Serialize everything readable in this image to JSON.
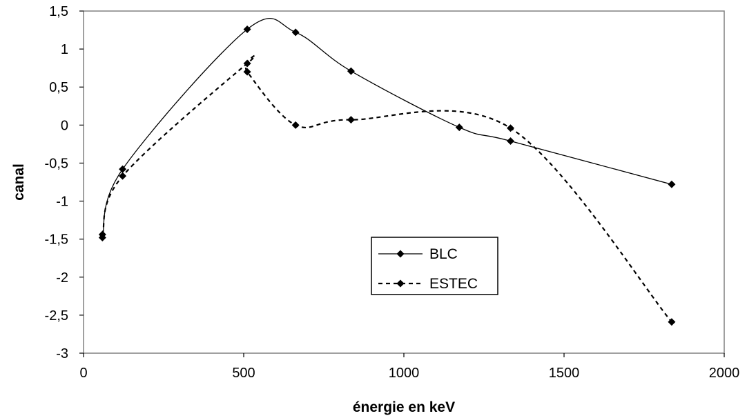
{
  "chart_data": {
    "type": "scatter",
    "title": "",
    "xlabel": "énergie en keV",
    "ylabel": "canal",
    "xlim": [
      0,
      2000
    ],
    "ylim": [
      -3,
      1.5
    ],
    "x_ticks": [
      0,
      500,
      1000,
      1500,
      2000
    ],
    "x_tick_labels": [
      "0",
      "500",
      "1000",
      "1500",
      "2000"
    ],
    "y_ticks": [
      1.5,
      1,
      0.5,
      0,
      -0.5,
      -1,
      -1.5,
      -2,
      -2.5,
      -3
    ],
    "y_tick_labels": [
      "1,5",
      "1",
      "0,5",
      "0",
      "-0,5",
      "-1",
      "-1,5",
      "-2",
      "-2,5",
      "-3"
    ],
    "grid": false,
    "legend_position": "center-right",
    "series": [
      {
        "name": "BLC",
        "line_style": "solid",
        "color": "#000000",
        "marker": "diamond",
        "points": [
          {
            "x": 59,
            "y": -1.48
          },
          {
            "x": 122,
            "y": -0.58
          },
          {
            "x": 511,
            "y": 1.26
          },
          {
            "x": 662,
            "y": 1.22
          },
          {
            "x": 835,
            "y": 0.71
          },
          {
            "x": 1173,
            "y": -0.03
          },
          {
            "x": 1333,
            "y": -0.21
          },
          {
            "x": 1836,
            "y": -0.78
          }
        ]
      },
      {
        "name": "ESTEC",
        "line_style": "dashed",
        "color": "#000000",
        "marker": "diamond",
        "points": [
          {
            "x": 59,
            "y": -1.44
          },
          {
            "x": 122,
            "y": -0.67
          },
          {
            "x": 511,
            "y": 0.81
          },
          {
            "x": 511,
            "y": 0.7
          },
          {
            "x": 662,
            "y": 0.0
          },
          {
            "x": 835,
            "y": 0.07
          },
          {
            "x": 1333,
            "y": -0.04
          },
          {
            "x": 1836,
            "y": -2.59
          }
        ]
      }
    ]
  }
}
